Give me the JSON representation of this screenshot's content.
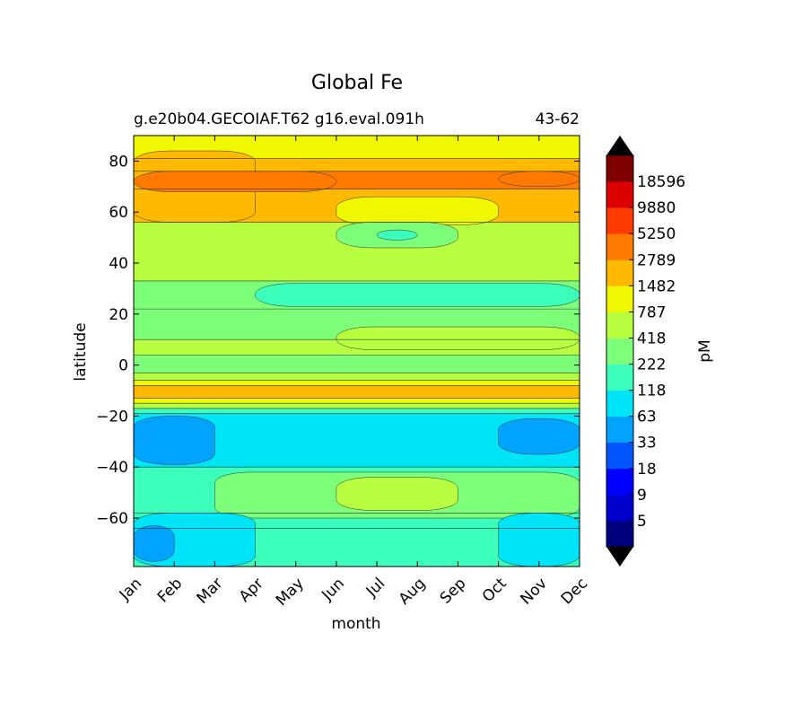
{
  "chart_data": {
    "type": "heatmap",
    "title": "Global Fe",
    "subtitle_left": "g.e20b04.GECOIAF.T62 g16.eval.091h",
    "subtitle_right": "43-62",
    "xlabel": "month",
    "ylabel": "latitude",
    "x_categories": [
      "Jan",
      "Feb",
      "Mar",
      "Apr",
      "May",
      "Jun",
      "Jul",
      "Aug",
      "Sep",
      "Oct",
      "Nov",
      "Dec"
    ],
    "ylim": [
      -79,
      90
    ],
    "y_ticks": [
      80,
      60,
      40,
      20,
      0,
      -20,
      -40,
      -60
    ],
    "y_tick_labels": [
      "80",
      "60",
      "40",
      "20",
      "0",
      "−20",
      "−40",
      "−60"
    ],
    "colorbar": {
      "label": "pM",
      "tick_labels": [
        "5",
        "9",
        "18",
        "33",
        "63",
        "118",
        "222",
        "418",
        "787",
        "1482",
        "2789",
        "5250",
        "9880",
        "18596"
      ],
      "colors": [
        "#00007f",
        "#0000cd",
        "#0000ff",
        "#0055ff",
        "#00a4ff",
        "#00e4f7",
        "#3bffbb",
        "#7dff7a",
        "#b7ff40",
        "#f0f800",
        "#ffb900",
        "#ff7a00",
        "#ff3b00",
        "#dd0000",
        "#7f0000"
      ],
      "extend_min_color": "#000000",
      "extend_max_color": "#000000"
    },
    "bands": [
      {
        "from": 90,
        "to": 81,
        "level": "787-1482"
      },
      {
        "from": 81,
        "to": 76,
        "level": "1482-2789"
      },
      {
        "from": 76,
        "to": 69,
        "level": "2789-5250"
      },
      {
        "from": 69,
        "to": 56,
        "level": "1482-2789"
      },
      {
        "from": 56,
        "to": 33,
        "level": "418-787"
      },
      {
        "from": 33,
        "to": 22,
        "level": "222-418"
      },
      {
        "from": 22,
        "to": 10,
        "level": "222-418"
      },
      {
        "from": 10,
        "to": 4,
        "level": "418-787"
      },
      {
        "from": 4,
        "to": -3,
        "level": "222-418"
      },
      {
        "from": -3,
        "to": -6,
        "level": "418-787"
      },
      {
        "from": -6,
        "to": -8,
        "level": "787-1482"
      },
      {
        "from": -8,
        "to": -13,
        "level": "1482-2789"
      },
      {
        "from": -13,
        "to": -15,
        "level": "787-1482"
      },
      {
        "from": -15,
        "to": -17,
        "level": "418-787"
      },
      {
        "from": -17,
        "to": -19,
        "level": "118-222"
      },
      {
        "from": -19,
        "to": -40,
        "level": "63-118"
      },
      {
        "from": -40,
        "to": -58,
        "level": "118-222"
      },
      {
        "from": -58,
        "to": -64,
        "level": "118-222"
      },
      {
        "from": -64,
        "to": -79,
        "level": "118-222"
      }
    ],
    "patches": [
      {
        "month_range": [
          "Jan",
          "Apr"
        ],
        "lat_range": [
          84,
          56
        ],
        "level": "1482-2789"
      },
      {
        "month_range": [
          "Jan",
          "Jun"
        ],
        "lat_range": [
          76,
          68
        ],
        "level": "2789-5250"
      },
      {
        "month_range": [
          "Oct",
          "Dec"
        ],
        "lat_range": [
          76,
          70
        ],
        "level": "2789-5250"
      },
      {
        "month_range": [
          "Jun",
          "Oct"
        ],
        "lat_range": [
          66,
          55
        ],
        "level": "787-1482"
      },
      {
        "month_range": [
          "Jun",
          "Sep"
        ],
        "lat_range": [
          56,
          46
        ],
        "level": "222-418"
      },
      {
        "month_range": [
          "Jul",
          "Aug"
        ],
        "lat_range": [
          53,
          49
        ],
        "level": "118-222"
      },
      {
        "month_range": [
          "Apr",
          "Dec"
        ],
        "lat_range": [
          32,
          23
        ],
        "level": "118-222"
      },
      {
        "month_range": [
          "Jun",
          "Dec"
        ],
        "lat_range": [
          15,
          6
        ],
        "level": "418-787"
      },
      {
        "month_range": [
          "Jan",
          "Mar"
        ],
        "lat_range": [
          -20,
          -39
        ],
        "level": "33-63"
      },
      {
        "month_range": [
          "Oct",
          "Dec"
        ],
        "lat_range": [
          -21,
          -35
        ],
        "level": "33-63"
      },
      {
        "month_range": [
          "Mar",
          "Dec"
        ],
        "lat_range": [
          -42,
          -60
        ],
        "level": "222-418"
      },
      {
        "month_range": [
          "Jun",
          "Sep"
        ],
        "lat_range": [
          -44,
          -57
        ],
        "level": "418-787"
      },
      {
        "month_range": [
          "Jan",
          "Apr"
        ],
        "lat_range": [
          -58,
          -79
        ],
        "level": "63-118"
      },
      {
        "month_range": [
          "Oct",
          "Dec"
        ],
        "lat_range": [
          -58,
          -79
        ],
        "level": "63-118"
      },
      {
        "month_range": [
          "Jan",
          "Feb"
        ],
        "lat_range": [
          -63,
          -77
        ],
        "level": "33-63"
      }
    ]
  }
}
